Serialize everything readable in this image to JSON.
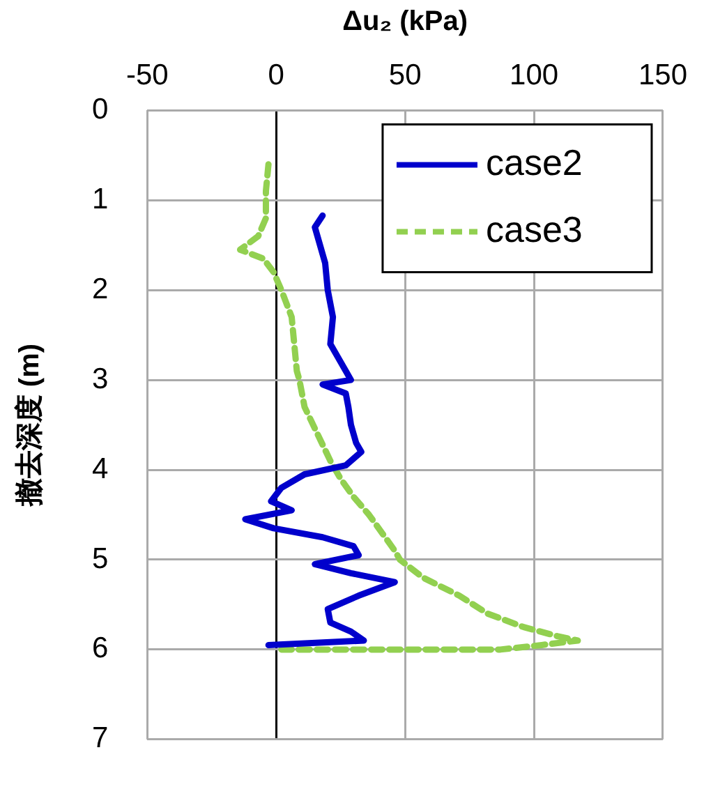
{
  "chart_data": {
    "type": "line",
    "xlabel": "Δu₂ (kPa)",
    "ylabel": "撤去深度 (m)",
    "xlim": [
      -50,
      150
    ],
    "xticks": [
      -50,
      0,
      50,
      100,
      150
    ],
    "ylim": [
      7,
      0
    ],
    "yticks": [
      0,
      1,
      2,
      3,
      4,
      5,
      6,
      7
    ],
    "grid": true,
    "legend": "top right",
    "marker": "none",
    "series": [
      {
        "name": "case2",
        "color": "#0000cc",
        "line_style": "solid",
        "x": [
          18,
          15,
          17,
          19,
          20,
          22,
          21,
          27,
          29,
          18,
          27,
          28,
          29,
          31,
          33,
          27,
          11,
          2,
          -2,
          6,
          -12,
          -1,
          18,
          30,
          32,
          15,
          29,
          46,
          32,
          20,
          21,
          29,
          34,
          -3
        ],
        "values": [
          1.17,
          1.3,
          1.5,
          1.7,
          2.0,
          2.3,
          2.6,
          2.9,
          3.0,
          3.05,
          3.15,
          3.3,
          3.5,
          3.7,
          3.8,
          3.95,
          4.05,
          4.2,
          4.35,
          4.45,
          4.55,
          4.65,
          4.75,
          4.85,
          4.95,
          5.05,
          5.15,
          5.25,
          5.4,
          5.55,
          5.7,
          5.8,
          5.9,
          5.95
        ]
      },
      {
        "name": "case3",
        "color": "#92d050",
        "line_style": "dashed",
        "x": [
          -3,
          -4,
          -4,
          -7,
          -14,
          -5,
          -1,
          2,
          6,
          7,
          8,
          9,
          11,
          16,
          21,
          25,
          30,
          36,
          41,
          46,
          48,
          57,
          71,
          82,
          96,
          109,
          117,
          103,
          87,
          2
        ],
        "values": [
          0.6,
          0.9,
          1.2,
          1.4,
          1.55,
          1.65,
          1.8,
          2.0,
          2.3,
          2.6,
          2.9,
          3.0,
          3.3,
          3.6,
          3.9,
          4.1,
          4.3,
          4.5,
          4.7,
          4.9,
          5.0,
          5.2,
          5.4,
          5.6,
          5.75,
          5.85,
          5.9,
          5.95,
          6.0,
          6.0
        ]
      }
    ]
  }
}
